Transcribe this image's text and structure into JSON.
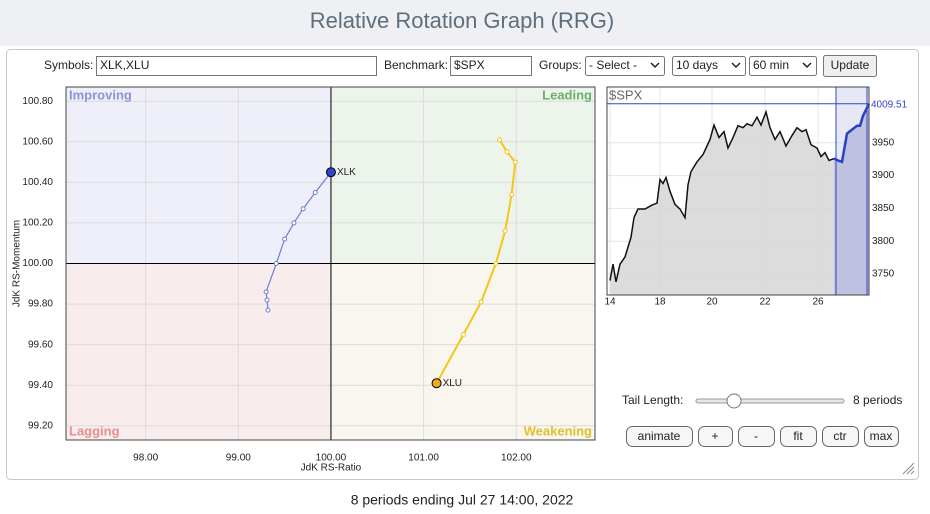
{
  "header": {
    "title": "Relative Rotation Graph (RRG)"
  },
  "controls": {
    "symbols_label": "Symbols:",
    "symbols": "XLK,XLU",
    "benchmark_label": "Benchmark:",
    "benchmark": "$SPX",
    "groups_label": "Groups:",
    "groups": "- Select -",
    "period": "10 days",
    "interval": "60 min",
    "update": "Update"
  },
  "chart_data": [
    {
      "type": "rrg",
      "x_label": "JdK RS-Ratio",
      "y_label": "JdK RS-Momentum",
      "quadrants": [
        "Improving",
        "Leading",
        "Lagging",
        "Weakening"
      ],
      "quadrant_colors": [
        "#eeeff8",
        "#edf4ec",
        "#f8ecec",
        "#f8f6ee"
      ],
      "quadrant_label_colors": [
        "#8a95d8",
        "#6ab06a",
        "#e89090",
        "#e0c030"
      ],
      "center": [
        100,
        100
      ],
      "xlim": [
        97.14,
        102.85
      ],
      "ylim": [
        99.13,
        100.87
      ],
      "xticks": [
        {
          "value": 98,
          "label": "98.00"
        },
        {
          "value": 99,
          "label": "99.00"
        },
        {
          "value": 100,
          "label": "100.00"
        },
        {
          "value": 101,
          "label": "101.00"
        },
        {
          "value": 102,
          "label": "102.00"
        }
      ],
      "yticks": [
        {
          "value": 99.2,
          "label": "99.20"
        },
        {
          "value": 99.4,
          "label": "99.40"
        },
        {
          "value": 99.6,
          "label": "99.60"
        },
        {
          "value": 99.8,
          "label": "99.80"
        },
        {
          "value": 100,
          "label": "100.00"
        },
        {
          "value": 100.2,
          "label": "100.20"
        },
        {
          "value": 100.4,
          "label": "100.40"
        },
        {
          "value": 100.6,
          "label": "100.60"
        },
        {
          "value": 100.8,
          "label": "100.80"
        }
      ],
      "grid": true,
      "series": [
        {
          "name": "XLK",
          "color": "#6f7fd8",
          "head_color": "#3344cc",
          "x": [
            99.32,
            99.31,
            99.3,
            99.41,
            99.5,
            99.6,
            99.7,
            99.83,
            100.0
          ],
          "values": [
            99.77,
            99.82,
            99.86,
            100.0,
            100.12,
            100.2,
            100.27,
            100.35,
            100.45
          ]
        },
        {
          "name": "XLU",
          "color": "#f5c518",
          "head_color": "#f0a820",
          "x": [
            101.82,
            101.9,
            101.99,
            101.95,
            101.88,
            101.78,
            101.62,
            101.43,
            101.14
          ],
          "values": [
            100.61,
            100.55,
            100.5,
            100.34,
            100.16,
            100.0,
            99.81,
            99.65,
            99.41
          ]
        }
      ]
    },
    {
      "type": "line",
      "title": "$SPX",
      "x": [
        3,
        6,
        9,
        13,
        18,
        21,
        24,
        27,
        31,
        38,
        45,
        50,
        53,
        56,
        59,
        63,
        68,
        73,
        78,
        81,
        84,
        90,
        96,
        103,
        107,
        112,
        117,
        121,
        126,
        131,
        136,
        140,
        145,
        150,
        154,
        159,
        163,
        168,
        173,
        179,
        185,
        190,
        195,
        199,
        204,
        210,
        214,
        218,
        222,
        227,
        231,
        235,
        240,
        245,
        250,
        253,
        256,
        262
      ],
      "xlim": [
        0,
        262
      ],
      "ylim": [
        3718,
        4035
      ],
      "xticks": [
        {
          "value": 3,
          "label": "14"
        },
        {
          "value": 53,
          "label": "18"
        },
        {
          "value": 105,
          "label": "20"
        },
        {
          "value": 158,
          "label": "22"
        },
        {
          "value": 211,
          "label": "26"
        }
      ],
      "yticks": [
        3750,
        3800,
        3850,
        3900,
        3950
      ],
      "grid": true,
      "highlight": [
        229,
        262
      ],
      "highlight_color": "#c9cdea",
      "last_value": 4009.51,
      "series": [
        {
          "color": "#111111",
          "fill": "#d6d6d6",
          "values": [
            3740,
            3765,
            3738,
            3765,
            3776,
            3791,
            3806,
            3836,
            3849,
            3849,
            3855,
            3858,
            3894,
            3888,
            3897,
            3876,
            3856,
            3849,
            3836,
            3886,
            3906,
            3921,
            3932,
            3955,
            3977,
            3958,
            3967,
            3942,
            3958,
            3976,
            3973,
            3979,
            3976,
            3989,
            3977,
            3997,
            3973,
            3955,
            3967,
            3945,
            3961,
            3973,
            3967,
            3970,
            3947,
            3942,
            3929,
            3935,
            3923,
            3926,
            null,
            null,
            null,
            null,
            null,
            null,
            null,
            null
          ]
        },
        {
          "color": "#2a3fc4",
          "fill": "#b6bbdc",
          "values": [
            null,
            null,
            null,
            null,
            null,
            null,
            null,
            null,
            null,
            null,
            null,
            null,
            null,
            null,
            null,
            null,
            null,
            null,
            null,
            null,
            null,
            null,
            null,
            null,
            null,
            null,
            null,
            null,
            null,
            null,
            null,
            null,
            null,
            null,
            null,
            null,
            null,
            null,
            null,
            null,
            null,
            null,
            null,
            null,
            null,
            null,
            null,
            null,
            null,
            3926,
            3923,
            3921,
            3964,
            3970,
            3976,
            3976,
            3991,
            4009.51
          ]
        }
      ]
    }
  ],
  "tail": {
    "label": "Tail Length:",
    "value": "8 periods"
  },
  "buttons": [
    "animate",
    "+",
    "-",
    "fit",
    "ctr",
    "max"
  ],
  "footer": "8 periods ending Jul 27 14:00, 2022"
}
